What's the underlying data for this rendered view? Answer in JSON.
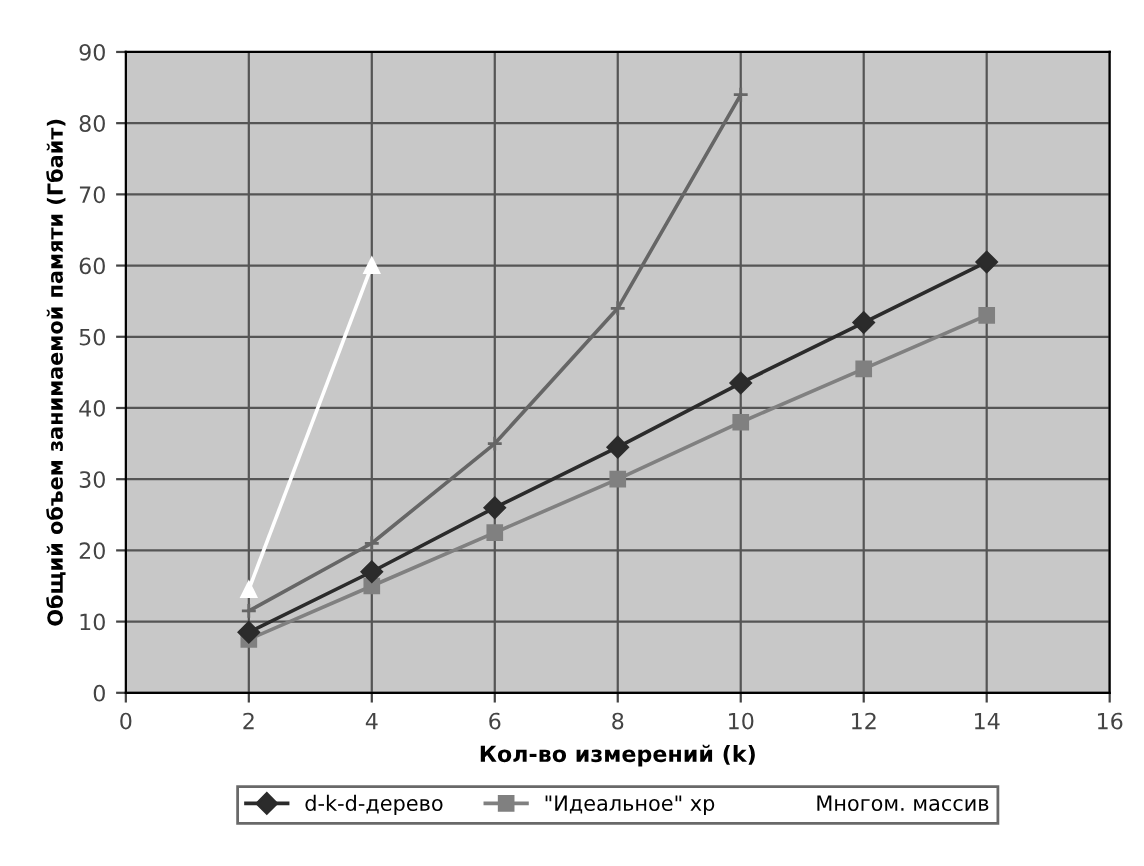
{
  "chart_data": {
    "type": "line",
    "xlabel": "Кол-во измерений (k)",
    "ylabel": "Общий объем занимаемой памяти (Гбайт)",
    "xlim": [
      0,
      16
    ],
    "xticks": [
      0,
      2,
      4,
      6,
      8,
      10,
      12,
      14,
      16
    ],
    "ylim": [
      0,
      90
    ],
    "yticks": [
      0,
      10,
      20,
      30,
      40,
      50,
      60,
      70,
      80,
      90
    ],
    "grid": true,
    "legend": "bottom",
    "series": [
      {
        "name": "d-k-d-дерево",
        "color": "#2b2b2b",
        "marker": "diamond",
        "x": [
          2,
          4,
          6,
          8,
          10,
          12,
          14
        ],
        "values": [
          8.5,
          17,
          26,
          34.5,
          43.5,
          52,
          60.5
        ]
      },
      {
        "name": "\"Идеальное\" хр",
        "color": "#808080",
        "marker": "square",
        "x": [
          2,
          4,
          6,
          8,
          10,
          12,
          14
        ],
        "values": [
          7.5,
          15,
          22.5,
          30,
          38,
          45.5,
          53
        ]
      },
      {
        "name": "Многом. массив",
        "color": "#ffffff",
        "marker": "triangle",
        "x": [
          2,
          4
        ],
        "values": [
          14.5,
          60
        ]
      },
      {
        "color": "#666666",
        "marker": "cross",
        "x": [
          2,
          4,
          6,
          8,
          10
        ],
        "values": [
          11.5,
          21,
          35,
          54,
          84
        ]
      }
    ]
  }
}
